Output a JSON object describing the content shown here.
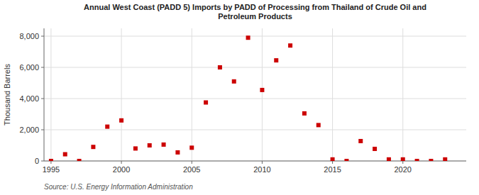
{
  "chart_data": {
    "type": "scatter",
    "title": "Annual West Coast (PADD 5) Imports by PADD of Processing from Thailand of Crude Oil and\nPetroleum Products",
    "y_label": "Thousand Barrels",
    "source": "Source: U.S. Energy Information Administration",
    "x": [
      1995,
      1996,
      1997,
      1998,
      1999,
      2000,
      2001,
      2002,
      2003,
      2004,
      2005,
      2006,
      2007,
      2008,
      2009,
      2010,
      2011,
      2012,
      2013,
      2014,
      2015,
      2016,
      2017,
      2018,
      2019,
      2020,
      2021,
      2022,
      2023
    ],
    "values": [
      0,
      430,
      0,
      900,
      2200,
      2600,
      800,
      1000,
      1050,
      550,
      850,
      3750,
      6000,
      5100,
      7900,
      4550,
      6450,
      7400,
      3050,
      2300,
      100,
      0,
      1275,
      775,
      100,
      100,
      0,
      0,
      100
    ],
    "color": "#cc0000",
    "marker": "square",
    "xlim": [
      1994.5,
      2024.5
    ],
    "ylim": [
      0,
      8500
    ],
    "xticks": [
      1995,
      2000,
      2005,
      2010,
      2015,
      2020
    ],
    "yticks": [
      0,
      {
        "value": 2000,
        "label": "2,000"
      },
      {
        "value": 4000,
        "label": "4,000"
      },
      {
        "value": 6000,
        "label": "6,000"
      },
      {
        "value": 8000,
        "label": "8,000"
      }
    ],
    "grid": true
  }
}
